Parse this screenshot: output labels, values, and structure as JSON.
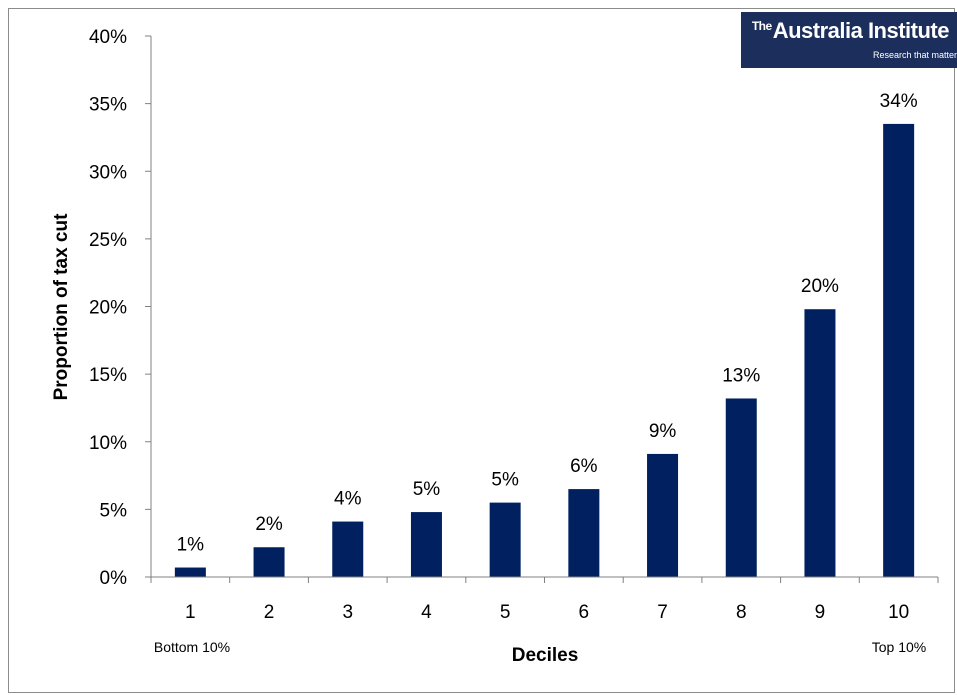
{
  "logo": {
    "prefix": "The",
    "name": "Australia Institute",
    "tagline": "Research that matter"
  },
  "colors": {
    "bar": "#002060",
    "axis": "#808080",
    "text": "#000000",
    "logo_bg": "#1c2f5c"
  },
  "chart_data": {
    "type": "bar",
    "title": "",
    "xlabel": "Deciles",
    "ylabel": "Proportion of tax cut",
    "x_end_labels": {
      "left": "Bottom 10%",
      "right": "Top 10%"
    },
    "categories": [
      "1",
      "2",
      "3",
      "4",
      "5",
      "6",
      "7",
      "8",
      "9",
      "10"
    ],
    "values": [
      0.7,
      2.2,
      4.1,
      4.8,
      5.5,
      6.5,
      9.1,
      13.2,
      19.8,
      33.5
    ],
    "data_labels": [
      "1%",
      "2%",
      "4%",
      "5%",
      "5%",
      "6%",
      "9%",
      "13%",
      "20%",
      "34%"
    ],
    "ylim": [
      0,
      40
    ],
    "yticks": [
      "0%",
      "5%",
      "10%",
      "15%",
      "20%",
      "25%",
      "30%",
      "35%",
      "40%"
    ],
    "grid": false,
    "legend": "none"
  }
}
